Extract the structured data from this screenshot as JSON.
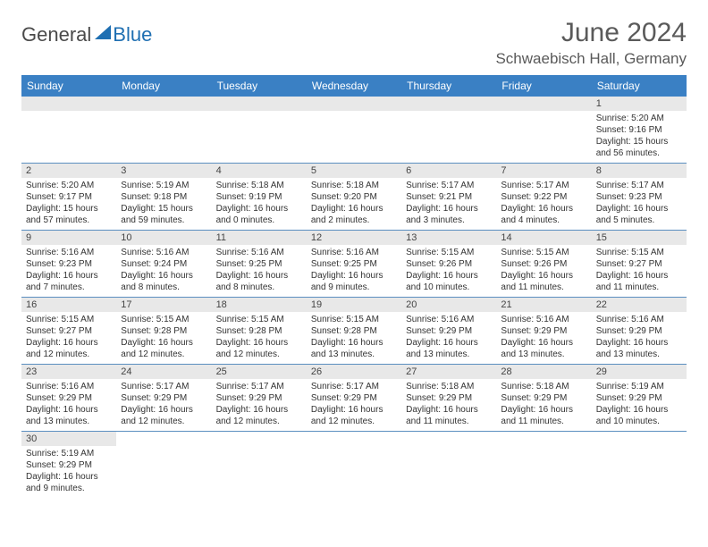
{
  "brand": {
    "general": "General",
    "blue": "Blue"
  },
  "title": "June 2024",
  "location": "Schwaebisch Hall, Germany",
  "colors": {
    "header_bg": "#3a80c4",
    "header_fg": "#ffffff",
    "daynum_bg": "#e8e8e8",
    "border": "#5b8fc0",
    "brand_blue": "#1f6fb2",
    "text": "#333333",
    "title_text": "#5a5a5a"
  },
  "typography": {
    "title_fontsize": 30,
    "location_fontsize": 17,
    "weekday_fontsize": 12,
    "daynum_fontsize": 11,
    "body_fontsize": 10
  },
  "weekdays": [
    "Sunday",
    "Monday",
    "Tuesday",
    "Wednesday",
    "Thursday",
    "Friday",
    "Saturday"
  ],
  "weeks": [
    [
      null,
      null,
      null,
      null,
      null,
      null,
      {
        "n": "1",
        "sr": "5:20 AM",
        "ss": "9:16 PM",
        "dl": "15 hours and 56 minutes."
      }
    ],
    [
      {
        "n": "2",
        "sr": "5:20 AM",
        "ss": "9:17 PM",
        "dl": "15 hours and 57 minutes."
      },
      {
        "n": "3",
        "sr": "5:19 AM",
        "ss": "9:18 PM",
        "dl": "15 hours and 59 minutes."
      },
      {
        "n": "4",
        "sr": "5:18 AM",
        "ss": "9:19 PM",
        "dl": "16 hours and 0 minutes."
      },
      {
        "n": "5",
        "sr": "5:18 AM",
        "ss": "9:20 PM",
        "dl": "16 hours and 2 minutes."
      },
      {
        "n": "6",
        "sr": "5:17 AM",
        "ss": "9:21 PM",
        "dl": "16 hours and 3 minutes."
      },
      {
        "n": "7",
        "sr": "5:17 AM",
        "ss": "9:22 PM",
        "dl": "16 hours and 4 minutes."
      },
      {
        "n": "8",
        "sr": "5:17 AM",
        "ss": "9:23 PM",
        "dl": "16 hours and 5 minutes."
      }
    ],
    [
      {
        "n": "9",
        "sr": "5:16 AM",
        "ss": "9:23 PM",
        "dl": "16 hours and 7 minutes."
      },
      {
        "n": "10",
        "sr": "5:16 AM",
        "ss": "9:24 PM",
        "dl": "16 hours and 8 minutes."
      },
      {
        "n": "11",
        "sr": "5:16 AM",
        "ss": "9:25 PM",
        "dl": "16 hours and 8 minutes."
      },
      {
        "n": "12",
        "sr": "5:16 AM",
        "ss": "9:25 PM",
        "dl": "16 hours and 9 minutes."
      },
      {
        "n": "13",
        "sr": "5:15 AM",
        "ss": "9:26 PM",
        "dl": "16 hours and 10 minutes."
      },
      {
        "n": "14",
        "sr": "5:15 AM",
        "ss": "9:26 PM",
        "dl": "16 hours and 11 minutes."
      },
      {
        "n": "15",
        "sr": "5:15 AM",
        "ss": "9:27 PM",
        "dl": "16 hours and 11 minutes."
      }
    ],
    [
      {
        "n": "16",
        "sr": "5:15 AM",
        "ss": "9:27 PM",
        "dl": "16 hours and 12 minutes."
      },
      {
        "n": "17",
        "sr": "5:15 AM",
        "ss": "9:28 PM",
        "dl": "16 hours and 12 minutes."
      },
      {
        "n": "18",
        "sr": "5:15 AM",
        "ss": "9:28 PM",
        "dl": "16 hours and 12 minutes."
      },
      {
        "n": "19",
        "sr": "5:15 AM",
        "ss": "9:28 PM",
        "dl": "16 hours and 13 minutes."
      },
      {
        "n": "20",
        "sr": "5:16 AM",
        "ss": "9:29 PM",
        "dl": "16 hours and 13 minutes."
      },
      {
        "n": "21",
        "sr": "5:16 AM",
        "ss": "9:29 PM",
        "dl": "16 hours and 13 minutes."
      },
      {
        "n": "22",
        "sr": "5:16 AM",
        "ss": "9:29 PM",
        "dl": "16 hours and 13 minutes."
      }
    ],
    [
      {
        "n": "23",
        "sr": "5:16 AM",
        "ss": "9:29 PM",
        "dl": "16 hours and 13 minutes."
      },
      {
        "n": "24",
        "sr": "5:17 AM",
        "ss": "9:29 PM",
        "dl": "16 hours and 12 minutes."
      },
      {
        "n": "25",
        "sr": "5:17 AM",
        "ss": "9:29 PM",
        "dl": "16 hours and 12 minutes."
      },
      {
        "n": "26",
        "sr": "5:17 AM",
        "ss": "9:29 PM",
        "dl": "16 hours and 12 minutes."
      },
      {
        "n": "27",
        "sr": "5:18 AM",
        "ss": "9:29 PM",
        "dl": "16 hours and 11 minutes."
      },
      {
        "n": "28",
        "sr": "5:18 AM",
        "ss": "9:29 PM",
        "dl": "16 hours and 11 minutes."
      },
      {
        "n": "29",
        "sr": "5:19 AM",
        "ss": "9:29 PM",
        "dl": "16 hours and 10 minutes."
      }
    ],
    [
      {
        "n": "30",
        "sr": "5:19 AM",
        "ss": "9:29 PM",
        "dl": "16 hours and 9 minutes."
      },
      null,
      null,
      null,
      null,
      null,
      null
    ]
  ],
  "labels": {
    "sunrise": "Sunrise:",
    "sunset": "Sunset:",
    "daylight": "Daylight:"
  }
}
